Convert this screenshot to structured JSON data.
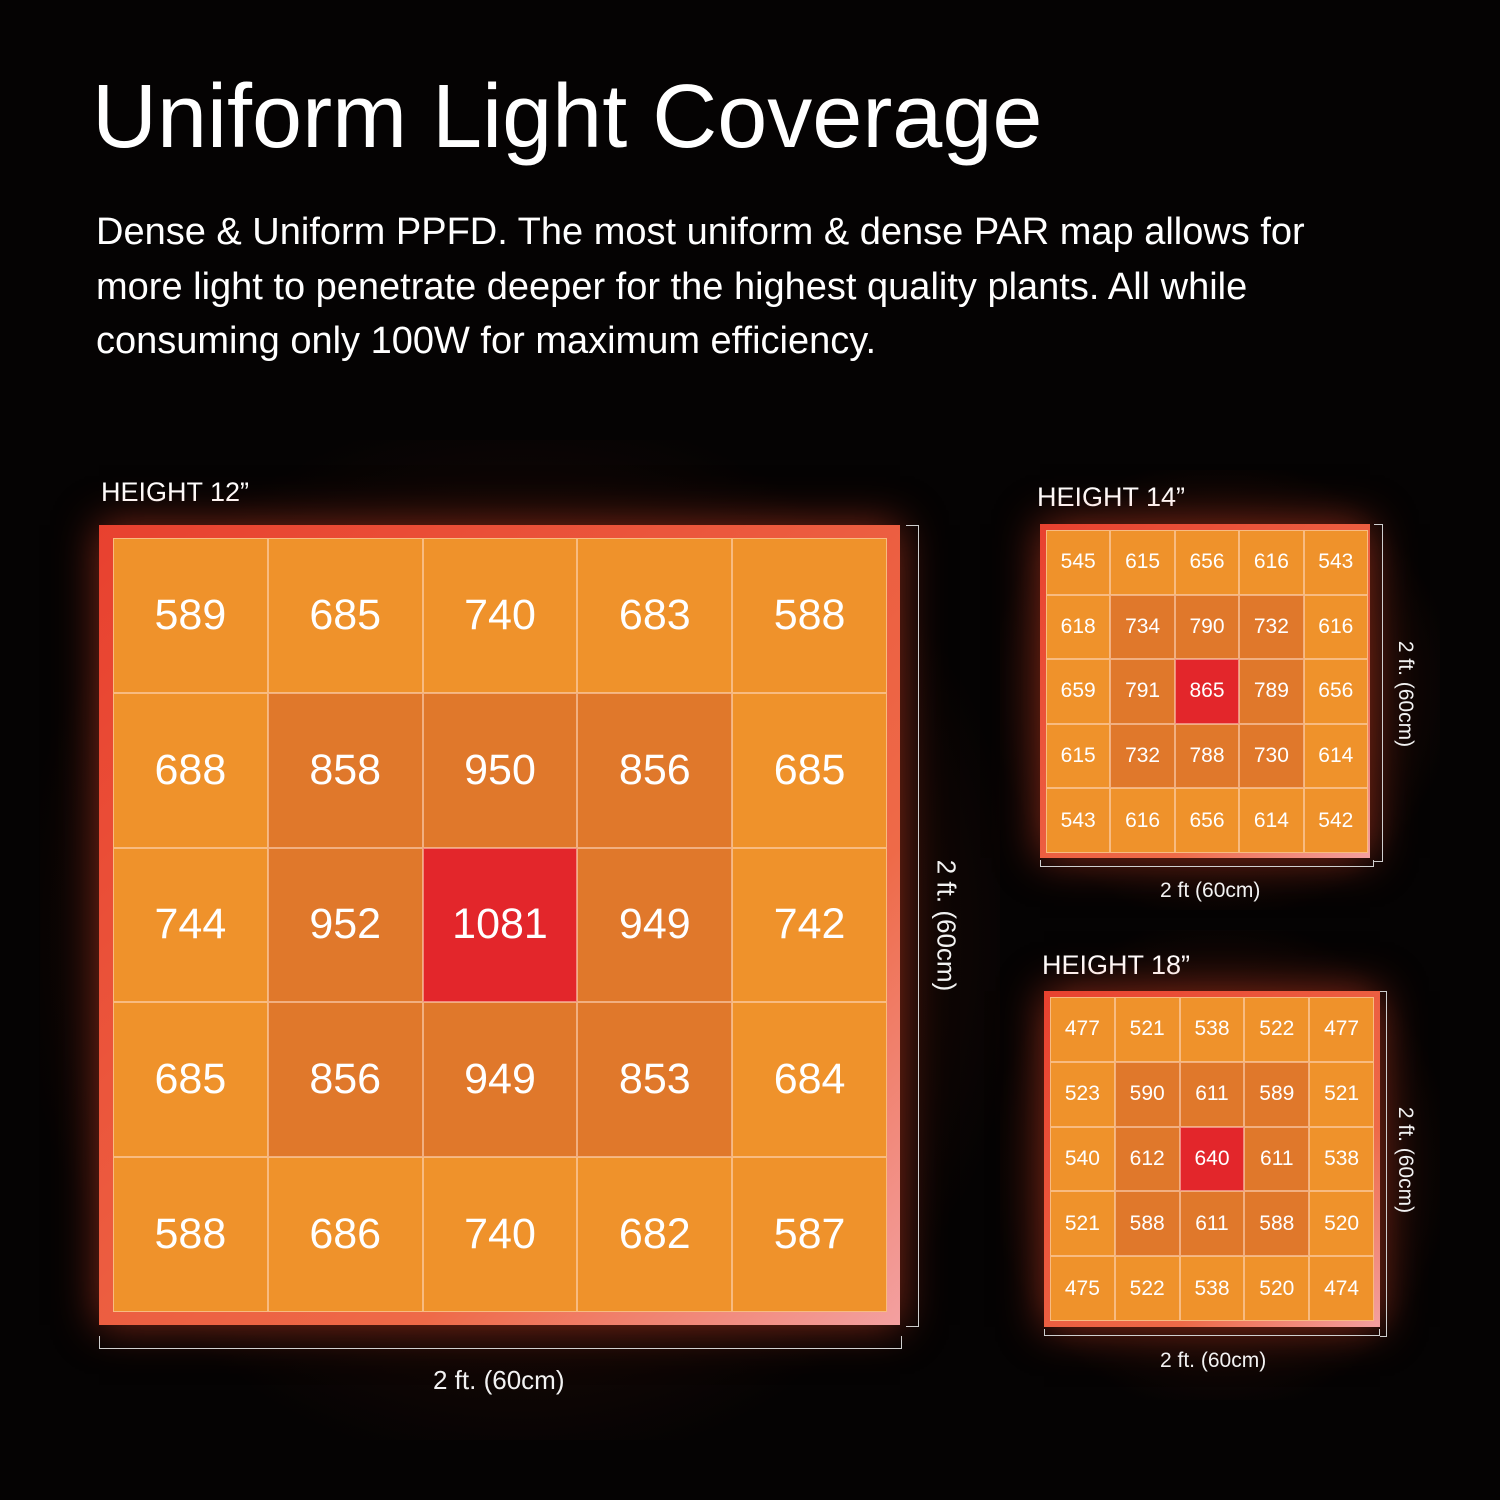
{
  "header": {
    "title": "Uniform Light Coverage",
    "subtitle": "Dense & Uniform PPFD.  The most uniform & dense PAR map allows for more light to penetrate deeper for the highest quality plants. All while consuming only 100W for maximum efficiency."
  },
  "colors": {
    "background": "#050303",
    "outer_cells": "#EF922B",
    "middle_cells": "#E0782B",
    "center_cell": "#E3262B",
    "border": "#E8503A"
  },
  "chart_data": [
    {
      "type": "heatmap",
      "title": "HEIGHT 12”",
      "xlabel": "2 ft. (60cm)",
      "ylabel": "2 ft. (60cm)",
      "values": [
        [
          589,
          685,
          740,
          683,
          588
        ],
        [
          688,
          858,
          950,
          856,
          685
        ],
        [
          744,
          952,
          1081,
          949,
          742
        ],
        [
          685,
          856,
          949,
          853,
          684
        ],
        [
          588,
          686,
          740,
          682,
          587
        ]
      ]
    },
    {
      "type": "heatmap",
      "title": "HEIGHT 14”",
      "xlabel": "2 ft (60cm)",
      "ylabel": "2 ft. (60cm)",
      "values": [
        [
          545,
          615,
          656,
          616,
          543
        ],
        [
          618,
          734,
          790,
          732,
          616
        ],
        [
          659,
          791,
          865,
          789,
          656
        ],
        [
          615,
          732,
          788,
          730,
          614
        ],
        [
          543,
          616,
          656,
          614,
          542
        ]
      ]
    },
    {
      "type": "heatmap",
      "title": "HEIGHT 18”",
      "xlabel": "2 ft. (60cm)",
      "ylabel": "2 ft. (60cm)",
      "values": [
        [
          477,
          521,
          538,
          522,
          477
        ],
        [
          523,
          590,
          611,
          589,
          521
        ],
        [
          540,
          612,
          640,
          611,
          538
        ],
        [
          521,
          588,
          611,
          588,
          520
        ],
        [
          475,
          522,
          538,
          520,
          474
        ]
      ]
    }
  ]
}
